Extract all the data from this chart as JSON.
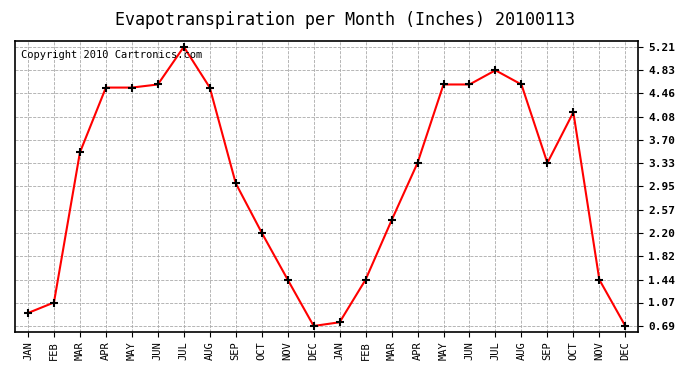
{
  "title": "Evapotranspiration per Month (Inches) 20100113",
  "copyright_text": "Copyright 2010 Cartronics.com",
  "months": [
    "JAN",
    "FEB",
    "MAR",
    "APR",
    "MAY",
    "JUN",
    "JUL",
    "AUG",
    "SEP",
    "OCT",
    "NOV",
    "DEC",
    "JAN",
    "FEB",
    "MAR",
    "APR",
    "MAY",
    "JUN",
    "JUL",
    "AUG",
    "SEP",
    "OCT",
    "NOV",
    "DEC"
  ],
  "values": [
    0.9,
    1.07,
    3.5,
    4.55,
    4.55,
    4.6,
    5.21,
    4.55,
    3.0,
    2.2,
    1.44,
    0.69,
    0.75,
    1.44,
    2.4,
    3.33,
    4.6,
    4.6,
    4.83,
    4.6,
    3.33,
    4.15,
    1.44,
    0.69
  ],
  "yticks": [
    0.69,
    1.07,
    1.44,
    1.82,
    2.2,
    2.57,
    2.95,
    3.33,
    3.7,
    4.08,
    4.46,
    4.83,
    5.21
  ],
  "ymin": 0.6,
  "ymax": 5.3,
  "line_color": "red",
  "marker_color": "black",
  "bg_color": "white",
  "grid_color": "#aaaaaa",
  "title_fontsize": 12,
  "copyright_fontsize": 7.5
}
